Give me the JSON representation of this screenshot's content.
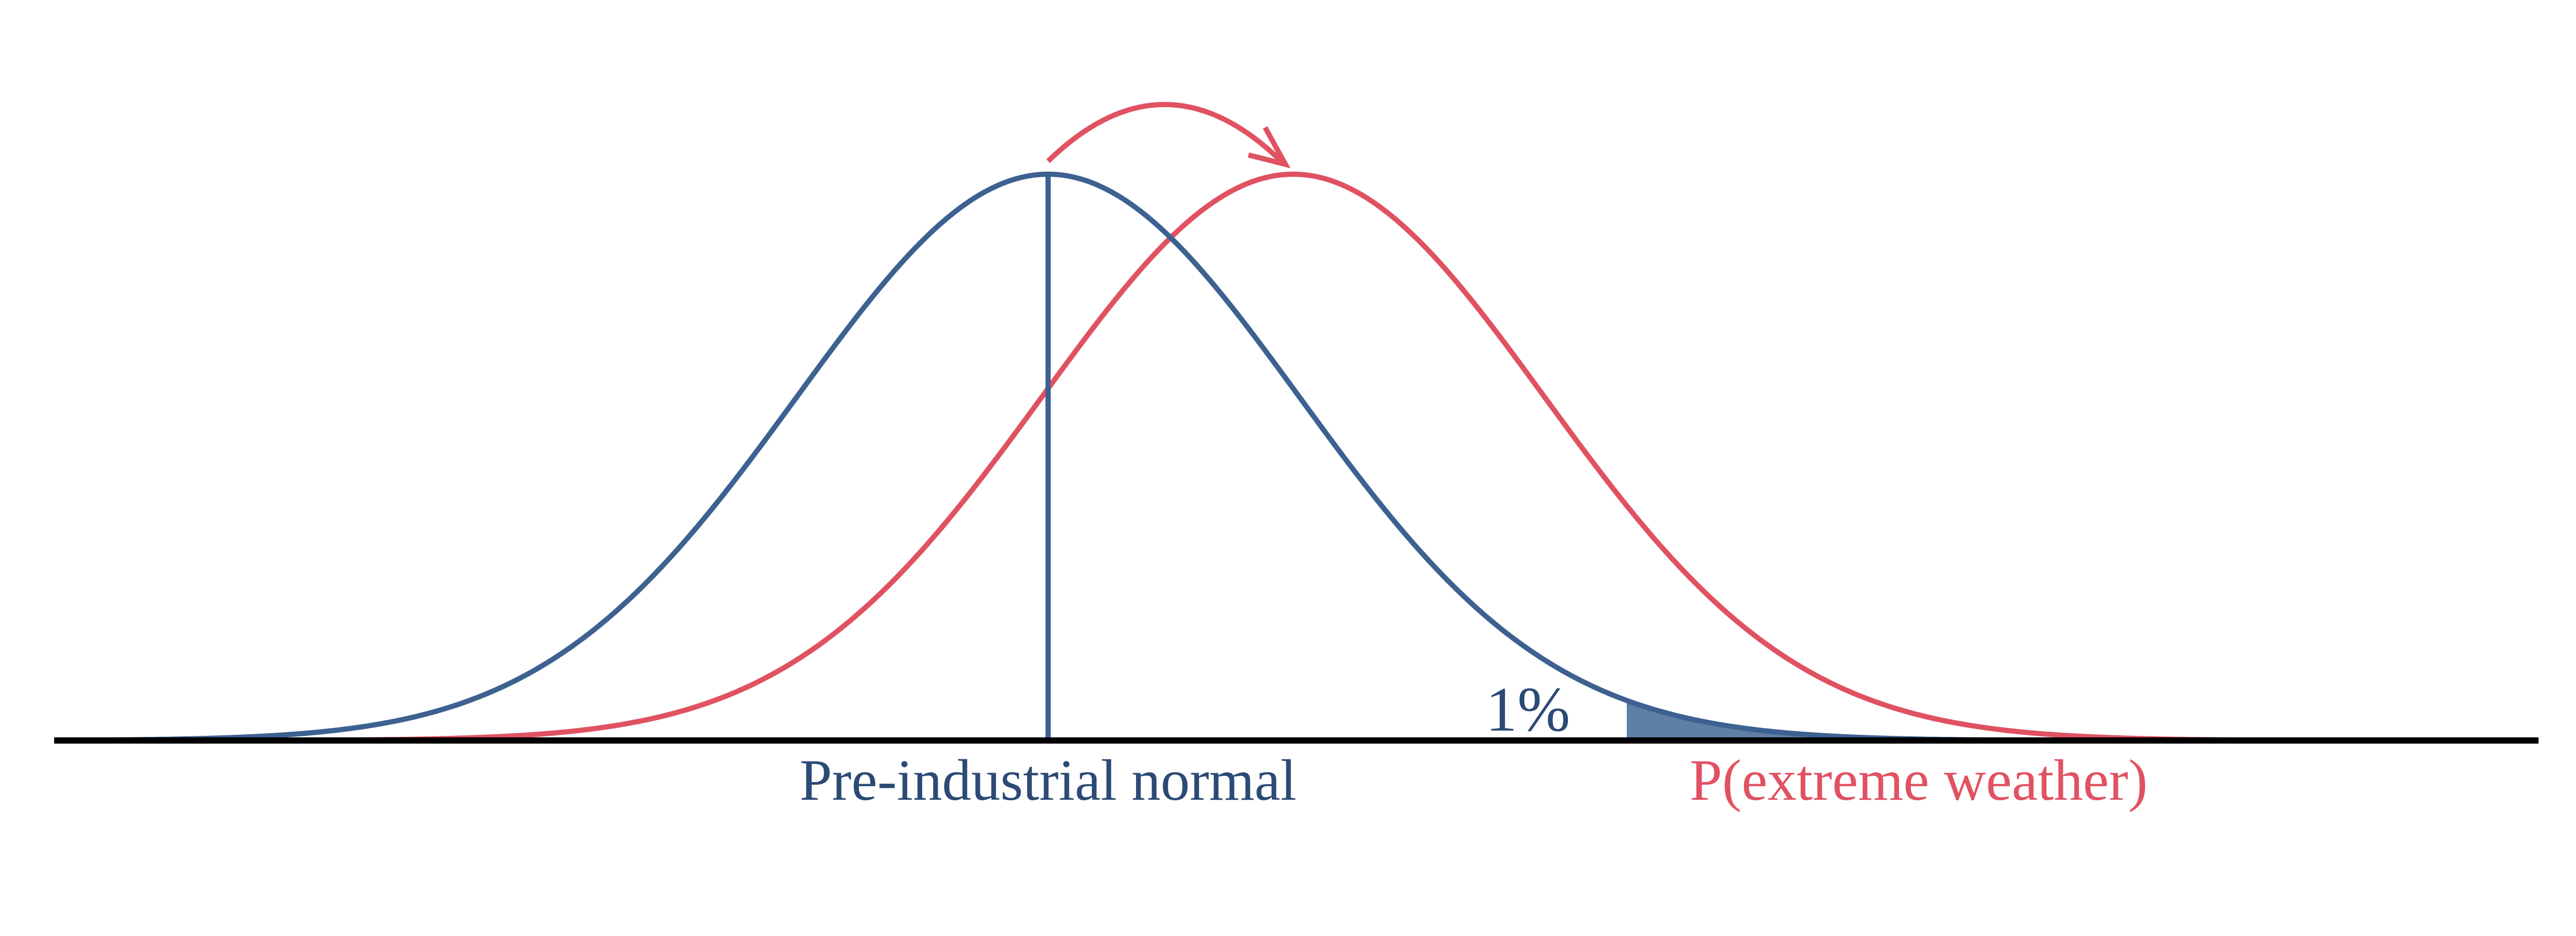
{
  "labels": {
    "tail": "1%",
    "normal": "Pre-industrial normal",
    "extreme": "P(extreme weather)"
  }
}
